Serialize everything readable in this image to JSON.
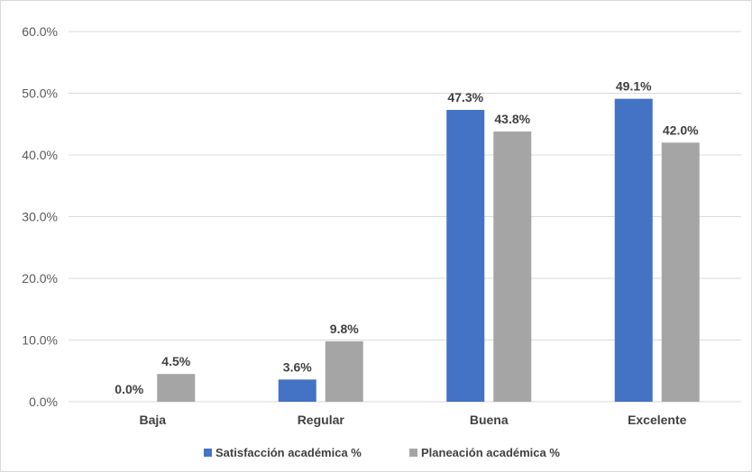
{
  "chart_data": {
    "type": "bar",
    "title": "",
    "xlabel": "",
    "ylabel": "",
    "categories": [
      "Baja",
      "Regular",
      "Buena",
      "Excelente"
    ],
    "series": [
      {
        "name": "Satisfacción académica %",
        "color": "#4472c4",
        "values": [
          0.0,
          3.6,
          47.3,
          49.1
        ],
        "labels": [
          "0.0%",
          "3.6%",
          "47.3%",
          "49.1%"
        ]
      },
      {
        "name": "Planeación académica %",
        "color": "#a5a5a5",
        "values": [
          4.5,
          9.8,
          43.8,
          42.0
        ],
        "labels": [
          "4.5%",
          "9.8%",
          "43.8%",
          "42.0%"
        ]
      }
    ],
    "ylim": [
      0,
      60
    ],
    "yticks": [
      0,
      10,
      20,
      30,
      40,
      50,
      60
    ],
    "ytick_labels": [
      "0.0%",
      "10.0%",
      "20.0%",
      "30.0%",
      "40.0%",
      "50.0%",
      "60.0%"
    ],
    "grid": true,
    "legend_position": "bottom"
  }
}
